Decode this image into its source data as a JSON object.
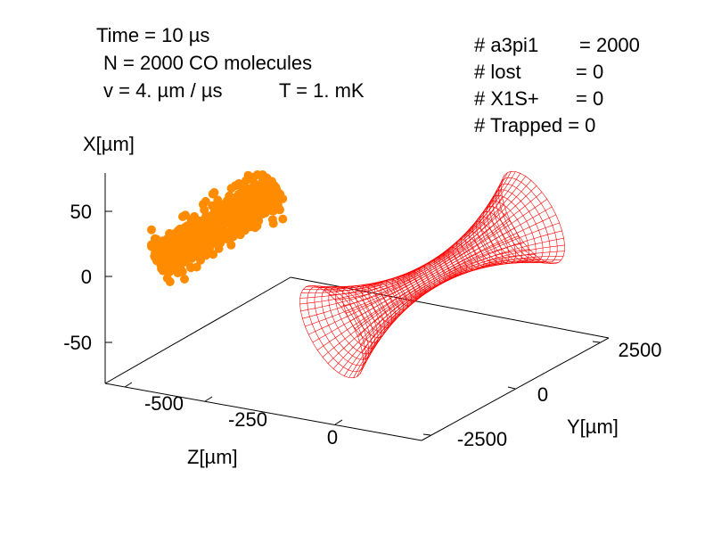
{
  "annotations": {
    "time": "Time = 10 µs",
    "n": "N = 2000 CO molecules",
    "v": "v = 4. µm / µs",
    "t": "T = 1. mK"
  },
  "counts": [
    {
      "label": "# a3pi1",
      "value": "= 2000"
    },
    {
      "label": "# lost",
      "value": "= 0"
    },
    {
      "label": "# X1S+",
      "value": "= 0"
    },
    {
      "label": "# Trapped = 0",
      "value": ""
    }
  ],
  "chart_data": {
    "type": "scatter",
    "projection": "3d",
    "xlabel": "X[µm]",
    "ylabel": "Y[µm]",
    "zlabel": "Z[µm]",
    "x_ticks": [
      "50",
      "0",
      "-50"
    ],
    "y_ticks": [
      "2500",
      "0",
      "-2500"
    ],
    "z_ticks": [
      "-500",
      "-250",
      "0"
    ],
    "series": [
      {
        "kind": "points",
        "color": "#ff8c00",
        "count": 2000
      },
      {
        "kind": "surface",
        "color": "#ff0000"
      }
    ]
  }
}
